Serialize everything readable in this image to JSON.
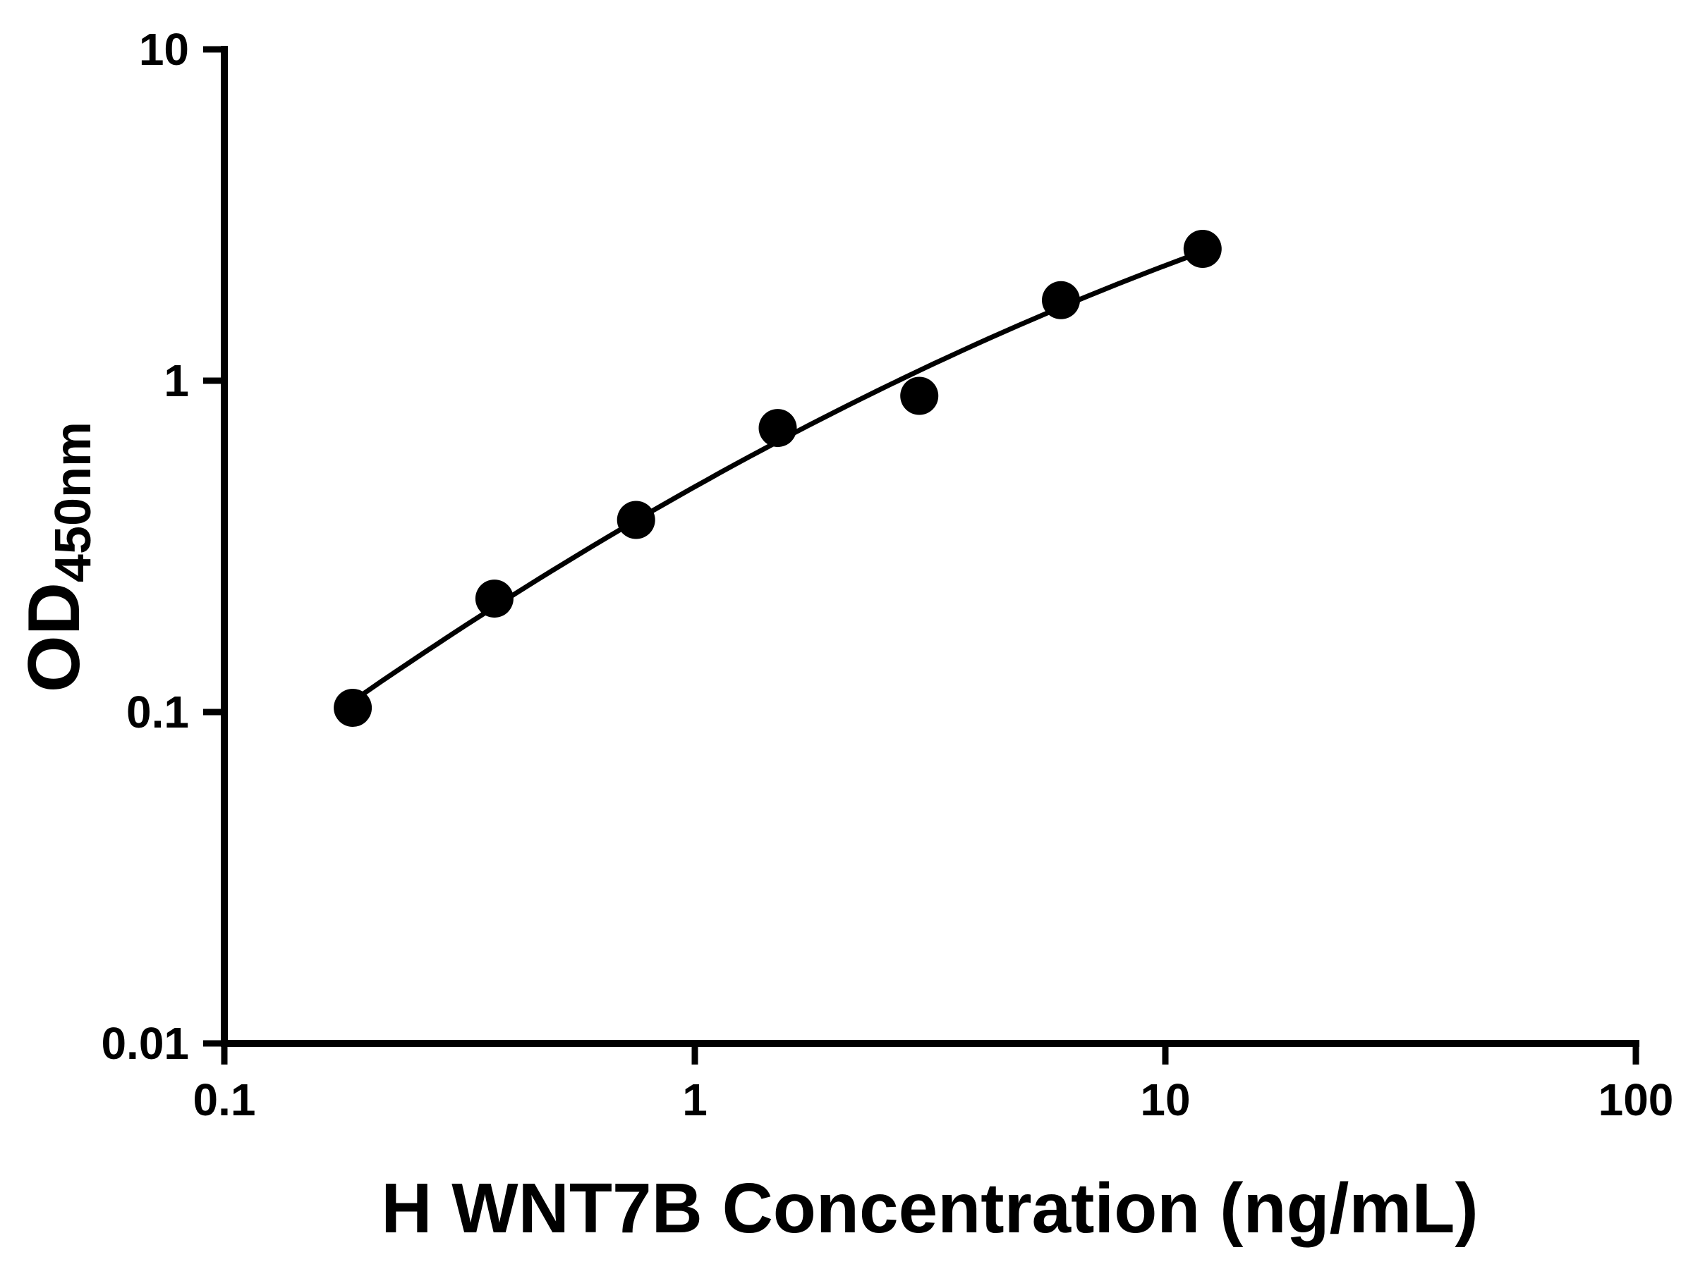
{
  "chart_data": {
    "type": "scatter",
    "title": "",
    "xlabel": "H WNT7B Concentration (ng/mL)",
    "ylabel_main": "OD",
    "ylabel_sub": "450nm",
    "x_scale": "log",
    "y_scale": "log",
    "xlim": [
      0.1,
      100
    ],
    "ylim": [
      0.01,
      10
    ],
    "x_ticks": [
      0.1,
      1,
      10,
      100
    ],
    "x_tick_labels": [
      "0.1",
      "1",
      "10",
      "100"
    ],
    "y_ticks": [
      0.01,
      0.1,
      1,
      10
    ],
    "y_tick_labels": [
      "0.01",
      "0.1",
      "1",
      "10"
    ],
    "grid": false,
    "legend": "none",
    "series": [
      {
        "marker": "circle",
        "marker_color": "#000000",
        "x": [
          0.1875,
          0.375,
          0.75,
          1.5,
          3,
          6,
          12
        ],
        "y": [
          0.103,
          0.22,
          0.38,
          0.72,
          0.9,
          1.75,
          2.5
        ]
      }
    ],
    "fit": {
      "type": "log-log-quadratic",
      "a": -0.32,
      "b": 0.7963,
      "c": -0.1286,
      "x_range": [
        0.1875,
        12
      ]
    }
  },
  "colors": {
    "foreground": "#000000",
    "background": "#ffffff"
  }
}
